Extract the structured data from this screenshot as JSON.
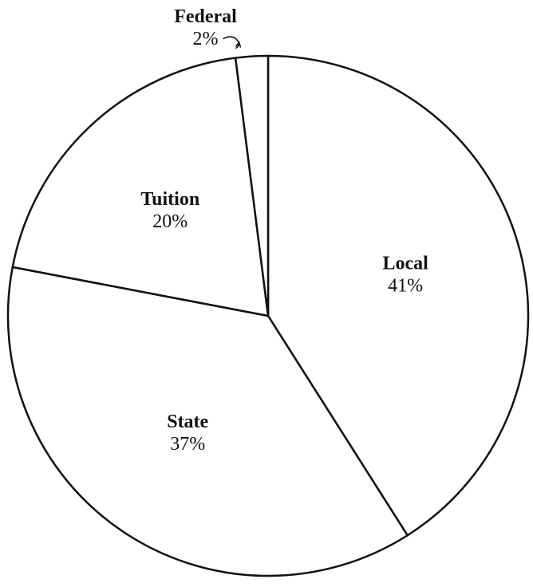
{
  "chart_data": {
    "type": "pie",
    "categories": [
      "Local",
      "State",
      "Tuition",
      "Federal"
    ],
    "values": [
      41,
      37,
      20,
      2
    ],
    "value_labels": [
      "41%",
      "37%",
      "20%",
      "2%"
    ],
    "color": "#ffffff"
  }
}
